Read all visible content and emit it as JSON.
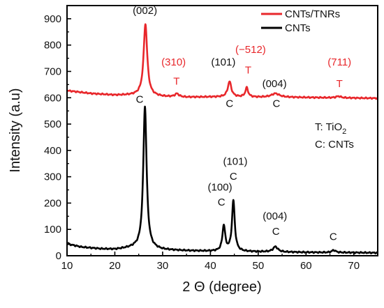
{
  "chart_data": {
    "type": "line",
    "xlabel": "2 Θ (degree)",
    "ylabel": "Intensity (a.u)",
    "xlim": [
      10,
      75
    ],
    "ylim": [
      0,
      950
    ],
    "xticks": [
      10,
      20,
      30,
      40,
      50,
      60,
      70
    ],
    "yticks": [
      0,
      100,
      200,
      300,
      400,
      500,
      600,
      700,
      800,
      900
    ],
    "grid": false,
    "legend_position": "top-right",
    "colors": {
      "red": "#e8272b",
      "black": "#000000",
      "axis": "#000000"
    },
    "series": [
      {
        "name": "CNTs/TNRs",
        "color": "#e8272b",
        "baseline": [
          [
            10,
            627
          ],
          [
            15,
            616
          ],
          [
            20,
            610
          ],
          [
            25,
            610
          ],
          [
            30,
            604
          ],
          [
            35,
            602
          ],
          [
            40,
            603
          ],
          [
            45,
            603
          ],
          [
            50,
            602
          ],
          [
            55,
            602
          ],
          [
            60,
            601
          ],
          [
            65,
            600
          ],
          [
            70,
            599
          ],
          [
            75,
            598
          ]
        ],
        "peaks": [
          {
            "x": 26.4,
            "height": 272,
            "width": 0.45
          },
          {
            "x": 33.0,
            "height": 12,
            "width": 0.5
          },
          {
            "x": 44.0,
            "height": 58,
            "width": 0.45
          },
          {
            "x": 47.6,
            "height": 35,
            "width": 0.35
          },
          {
            "x": 53.6,
            "height": 14,
            "width": 1.0
          },
          {
            "x": 66.8,
            "height": 6,
            "width": 0.6
          }
        ]
      },
      {
        "name": "CNTs",
        "color": "#000000",
        "baseline": [
          [
            10,
            45
          ],
          [
            13,
            33
          ],
          [
            17,
            26
          ],
          [
            20,
            24
          ],
          [
            24,
            30
          ],
          [
            30,
            22
          ],
          [
            35,
            19
          ],
          [
            40,
            17
          ],
          [
            45,
            16
          ],
          [
            50,
            15
          ],
          [
            55,
            14
          ],
          [
            60,
            13
          ],
          [
            65,
            12
          ],
          [
            70,
            12
          ],
          [
            75,
            11
          ]
        ],
        "peaks": [
          {
            "x": 26.3,
            "height": 540,
            "width": 0.42
          },
          {
            "x": 42.8,
            "height": 97,
            "width": 0.35
          },
          {
            "x": 44.8,
            "height": 192,
            "width": 0.35
          },
          {
            "x": 53.6,
            "height": 20,
            "width": 0.6
          },
          {
            "x": 65.8,
            "height": 9,
            "width": 0.5
          }
        ]
      }
    ],
    "annotations": [
      {
        "text": "(002)",
        "x": 26.3,
        "y": 918,
        "color": "#111111"
      },
      {
        "text": "(310)",
        "x": 32.3,
        "y": 722,
        "color": "#e8272b"
      },
      {
        "text": "T",
        "x": 32.9,
        "y": 650,
        "color": "#e8272b"
      },
      {
        "text": "(101)",
        "x": 42.7,
        "y": 722,
        "color": "#111111"
      },
      {
        "text": "(−512)",
        "x": 48.4,
        "y": 770,
        "color": "#e8272b"
      },
      {
        "text": "T",
        "x": 47.9,
        "y": 692,
        "color": "#e8272b"
      },
      {
        "text": "(004)",
        "x": 53.4,
        "y": 640,
        "color": "#111111"
      },
      {
        "text": "(711)",
        "x": 67.0,
        "y": 722,
        "color": "#e8272b"
      },
      {
        "text": "T",
        "x": 67.0,
        "y": 640,
        "color": "#e8272b"
      },
      {
        "text": "C",
        "x": 44.0,
        "y": 565,
        "color": "#111111"
      },
      {
        "text": "C",
        "x": 53.8,
        "y": 565,
        "color": "#111111"
      },
      {
        "text": "C",
        "x": 25.2,
        "y": 581,
        "color": "#111111"
      },
      {
        "text": "(101)",
        "x": 45.2,
        "y": 345,
        "color": "#111111"
      },
      {
        "text": "C",
        "x": 44.8,
        "y": 288,
        "color": "#111111"
      },
      {
        "text": "(100)",
        "x": 42.0,
        "y": 247,
        "color": "#111111"
      },
      {
        "text": "C",
        "x": 42.3,
        "y": 190,
        "color": "#111111"
      },
      {
        "text": "(004)",
        "x": 53.5,
        "y": 137,
        "color": "#111111"
      },
      {
        "text": "C",
        "x": 53.7,
        "y": 80,
        "color": "#111111"
      },
      {
        "text": "C",
        "x": 65.7,
        "y": 60,
        "color": "#111111"
      }
    ]
  },
  "key": {
    "t_prefix": "T: TiO",
    "t_subscript": "2",
    "c_line": "C: CNTs"
  }
}
